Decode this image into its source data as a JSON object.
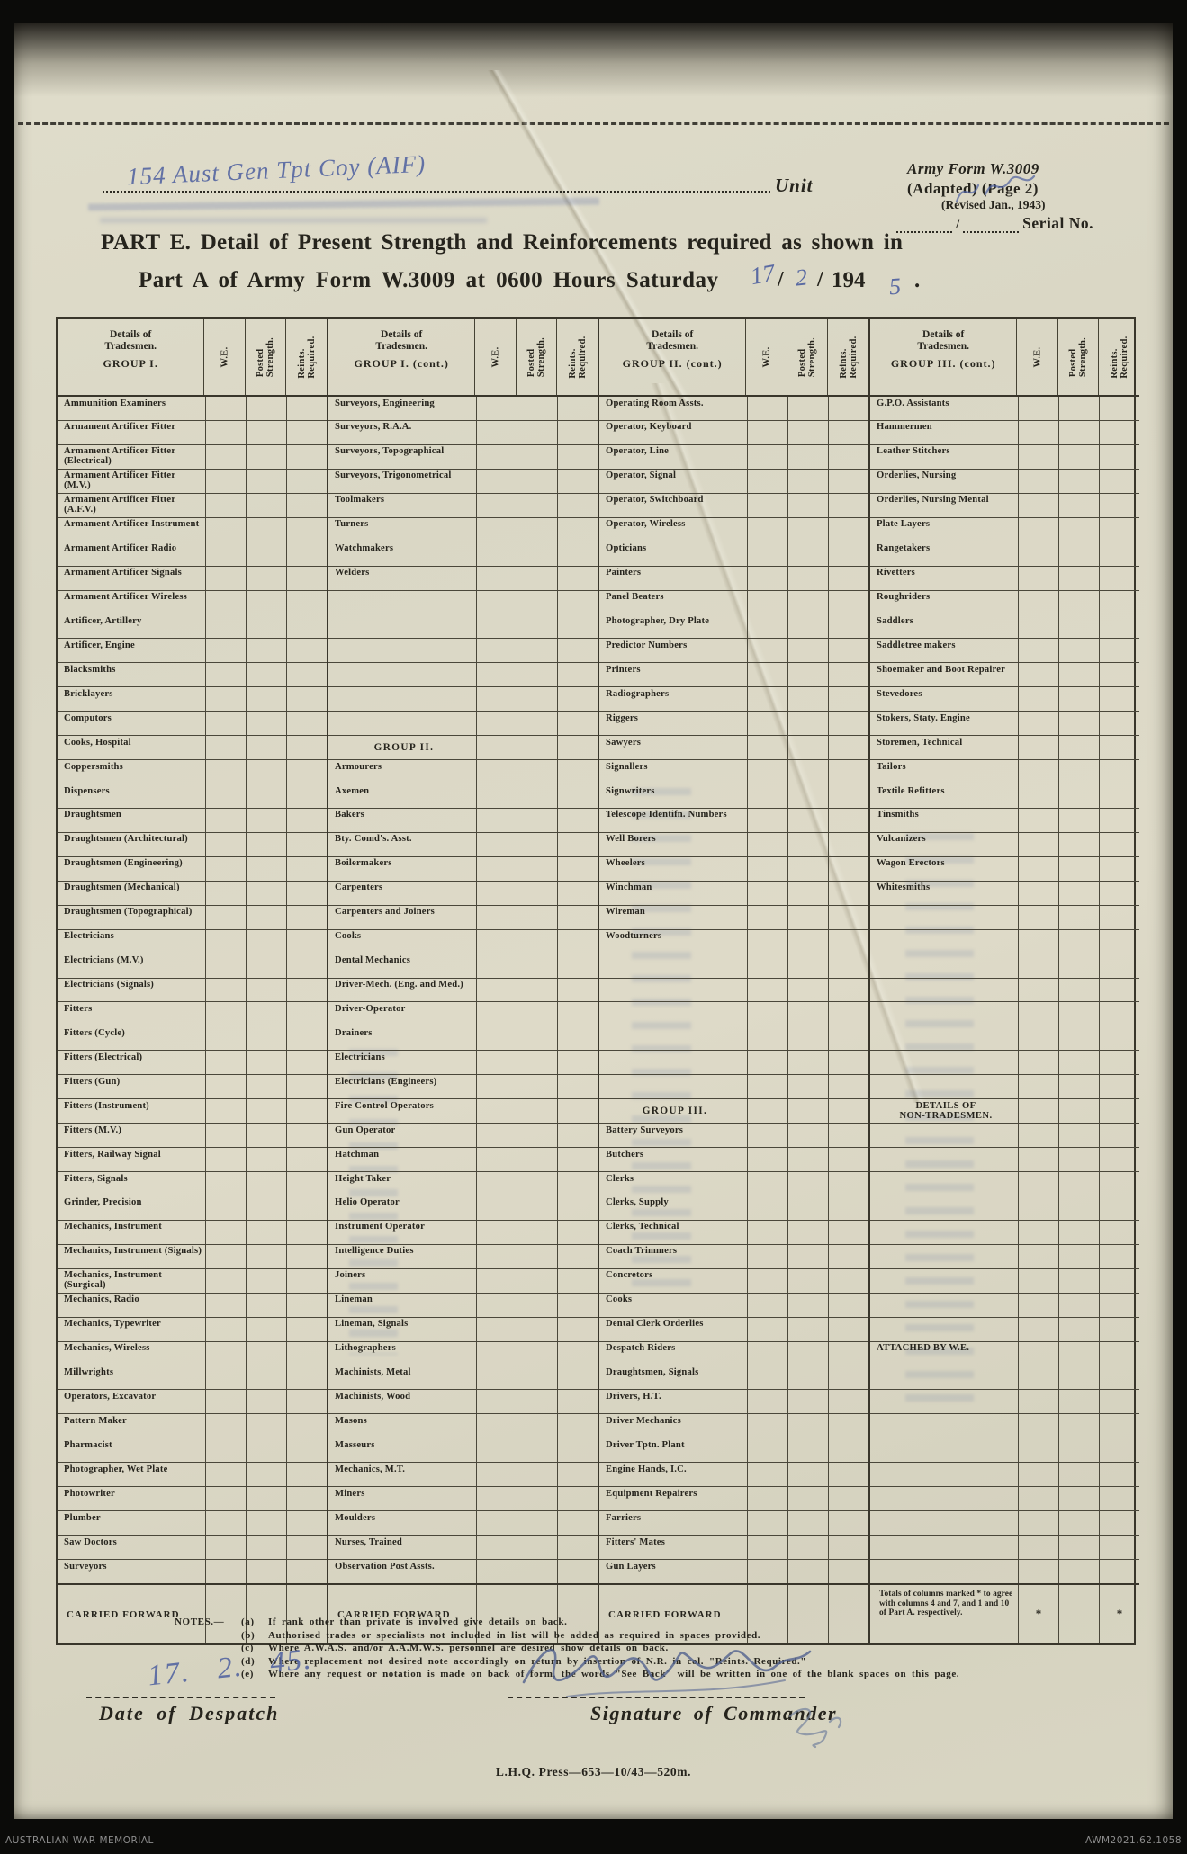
{
  "colors": {
    "paper": "#dcd9c8",
    "ink": "#26241d",
    "handwriting_blue": "#4d5f9f",
    "background": "#0b0b09",
    "awm_text": "#8e8e8e"
  },
  "header": {
    "unit_handwritten": "154 Aust Gen Tpt Coy (AIF)",
    "unit_label": "Unit",
    "army_form_line1": "Army Form W.3009",
    "army_form_line2": "(Adapted)  (Page 2)",
    "army_form_line3": "(Revised Jan., 1943)",
    "serial_slash": "/",
    "serial_label": "Serial No."
  },
  "title": {
    "line1": "PART E.  Detail of Present Strength and Reinforcements required as shown in",
    "line2_printed": "Part A of Army Form W.3009 at 0600 Hours Saturday",
    "slash1": "/",
    "slash2": "/",
    "year_printed": "194",
    "period": ".",
    "hand_day": "17",
    "hand_month": "2",
    "hand_year_digit": "5"
  },
  "table": {
    "col_headers": [
      "W.E.",
      "Posted\nStrength.",
      "Reints.\nRequired."
    ],
    "carried_forward_label": "CARRIED FORWARD",
    "totals_note": "Totals of columns marked * to agree with columns 4 and 7, and 1 and 10 of Part A. respectively.",
    "star": "*",
    "groups": [
      {
        "name_header": "Details of\nTradesmen.",
        "group_label": "GROUP I.",
        "rows": [
          "Ammunition Examiners",
          "Armament Artificer Fitter",
          "Armament Artificer Fitter (Electrical)",
          "Armament Artificer Fitter (M.V.)",
          "Armament Artificer Fitter (A.F.V.)",
          "Armament Artificer Instrument",
          "Armament Artificer Radio",
          "Armament Artificer Signals",
          "Armament Artificer Wireless",
          "Artificer, Artillery",
          "Artificer, Engine",
          "Blacksmiths",
          "Bricklayers",
          "Computors",
          "Cooks, Hospital",
          "Coppersmiths",
          "Dispensers",
          "Draughtsmen",
          "Draughtsmen (Architectural)",
          "Draughtsmen (Engineering)",
          "Draughtsmen (Mechanical)",
          "Draughtsmen (Topographical)",
          "Electricians",
          "Electricians (M.V.)",
          "Electricians (Signals)",
          "Fitters",
          "Fitters (Cycle)",
          "Fitters (Electrical)",
          "Fitters (Gun)",
          "Fitters (Instrument)",
          "Fitters (M.V.)",
          "Fitters, Railway Signal",
          "Fitters, Signals",
          "Grinder, Precision",
          "Mechanics, Instrument",
          "Mechanics, Instrument (Signals)",
          "Mechanics, Instrument (Surgical)",
          "Mechanics, Radio",
          "Mechanics, Typewriter",
          "Mechanics, Wireless",
          "Millwrights",
          "Operators, Excavator",
          "Pattern  Maker",
          "Pharmacist",
          "Photographer, Wet Plate",
          "Photowriter",
          "Plumber",
          "Saw Doctors",
          "Surveyors"
        ]
      },
      {
        "name_header": "Details of\nTradesmen.",
        "group_label": "GROUP I. (cont.)",
        "rows": [
          "Surveyors, Engineering",
          "Surveyors, R.A.A.",
          "Surveyors, Topographical",
          "Surveyors, Trigonometrical",
          "Toolmakers",
          "Turners",
          "Watchmakers",
          "Welders",
          "",
          "",
          "",
          "",
          "",
          "",
          {
            "type": "subheader",
            "text": "GROUP II."
          },
          "Armourers",
          "Axemen",
          "Bakers",
          "Bty. Comd's. Asst.",
          "Boilermakers",
          "Carpenters",
          "Carpenters and Joiners",
          "Cooks",
          "Dental Mechanics",
          "Driver-Mech. (Eng. and Med.)",
          "Driver-Operator",
          "Drainers",
          "Electricians",
          "Electricians (Engineers)",
          "Fire Control Operators",
          "Gun Operator",
          "Hatchman",
          "Height Taker",
          "Helio Operator",
          "Instrument Operator",
          "Intelligence Duties",
          "Joiners",
          "Lineman",
          "Lineman, Signals",
          "Lithographers",
          "Machinists, Metal",
          "Machinists, Wood",
          "Masons",
          "Masseurs",
          "Mechanics, M.T.",
          "Miners",
          "Moulders",
          "Nurses, Trained",
          "Observation Post Assts."
        ]
      },
      {
        "name_header": "Details of\nTradesmen.",
        "group_label": "GROUP II. (cont.)",
        "rows": [
          "Operating Room Assts.",
          "Operator, Keyboard",
          "Operator, Line",
          "Operator, Signal",
          "Operator, Switchboard",
          "Operator, Wireless",
          "Opticians",
          "Painters",
          "Panel Beaters",
          "Photographer, Dry Plate",
          "Predictor Numbers",
          "Printers",
          "Radiographers",
          "Riggers",
          "Sawyers",
          "Signallers",
          "Signwriters",
          "Telescope Identifn. Numbers",
          "Well Borers",
          "Wheelers",
          "Winchman",
          "Wireman",
          "Woodturners",
          "",
          "",
          "",
          "",
          "",
          "",
          {
            "type": "subheader",
            "text": "GROUP III."
          },
          "Battery Surveyors",
          "Butchers",
          "Clerks",
          "Clerks, Supply",
          "Clerks, Technical",
          "Coach Trimmers",
          "Concretors",
          "Cooks",
          "Dental Clerk Orderlies",
          "Despatch Riders",
          "Draughtsmen, Signals",
          "Drivers, H.T.",
          "Driver Mechanics",
          "Driver Tptn. Plant",
          "Engine Hands, I.C.",
          "Equipment Repairers",
          "Farriers",
          "Fitters' Mates",
          "Gun Layers"
        ]
      },
      {
        "name_header": "Details of\nTradesmen.",
        "group_label": "GROUP III. (cont.)",
        "rows": [
          "G.P.O. Assistants",
          "Hammermen",
          "Leather Stitchers",
          "Orderlies, Nursing",
          "Orderlies, Nursing Mental",
          "Plate Layers",
          "Rangetakers",
          "Rivetters",
          "Roughriders",
          "Saddlers",
          "Saddletree makers",
          "Shoemaker and Boot Repairer",
          "Stevedores",
          "Stokers, Staty. Engine",
          "Storemen, Technical",
          "Tailors",
          "Textile Refitters",
          "Tinsmiths",
          "Vulcanizers",
          "Wagon Erectors",
          "Whitesmiths",
          "",
          "",
          "",
          "",
          "",
          "",
          "",
          "",
          {
            "type": "center",
            "text": "DETAILS OF\nNON-TRADESMEN."
          },
          "",
          "",
          "",
          "",
          "",
          "",
          "",
          "",
          "",
          "ATTACHED BY W.E.",
          "",
          "",
          "",
          "",
          "",
          "",
          "",
          "",
          ""
        ]
      }
    ]
  },
  "notes": {
    "prefix": "NOTES.—",
    "items": [
      {
        "label": "(a)",
        "text": "If rank other than private is involved give details on back."
      },
      {
        "label": "(b)",
        "text": "Authorised trades or specialists not included in list will be added as required in spaces provided."
      },
      {
        "label": "(c)",
        "text": "Where A.W.A.S. and/or A.A.M.W.S. personnel are desired show details on back."
      },
      {
        "label": "(d)",
        "text": "Where replacement not desired note accordingly on return by insertion of N.R. in col. \"Reints. Required.\""
      },
      {
        "label": "(e)",
        "text": "Where any request or notation is made on back of form, the words \"See Back\" will be written in one of the blank spaces on this page."
      }
    ]
  },
  "signoff": {
    "date_handwritten": "17. 2. 45.",
    "date_label": "Date of Despatch",
    "signature_label": "Signature of Commander"
  },
  "footer": {
    "imprint": "L.H.Q. Press—653—10/43—520m."
  },
  "awm_bar": {
    "left": "AUSTRALIAN WAR MEMORIAL",
    "right": "AWM2021.62.1058"
  }
}
